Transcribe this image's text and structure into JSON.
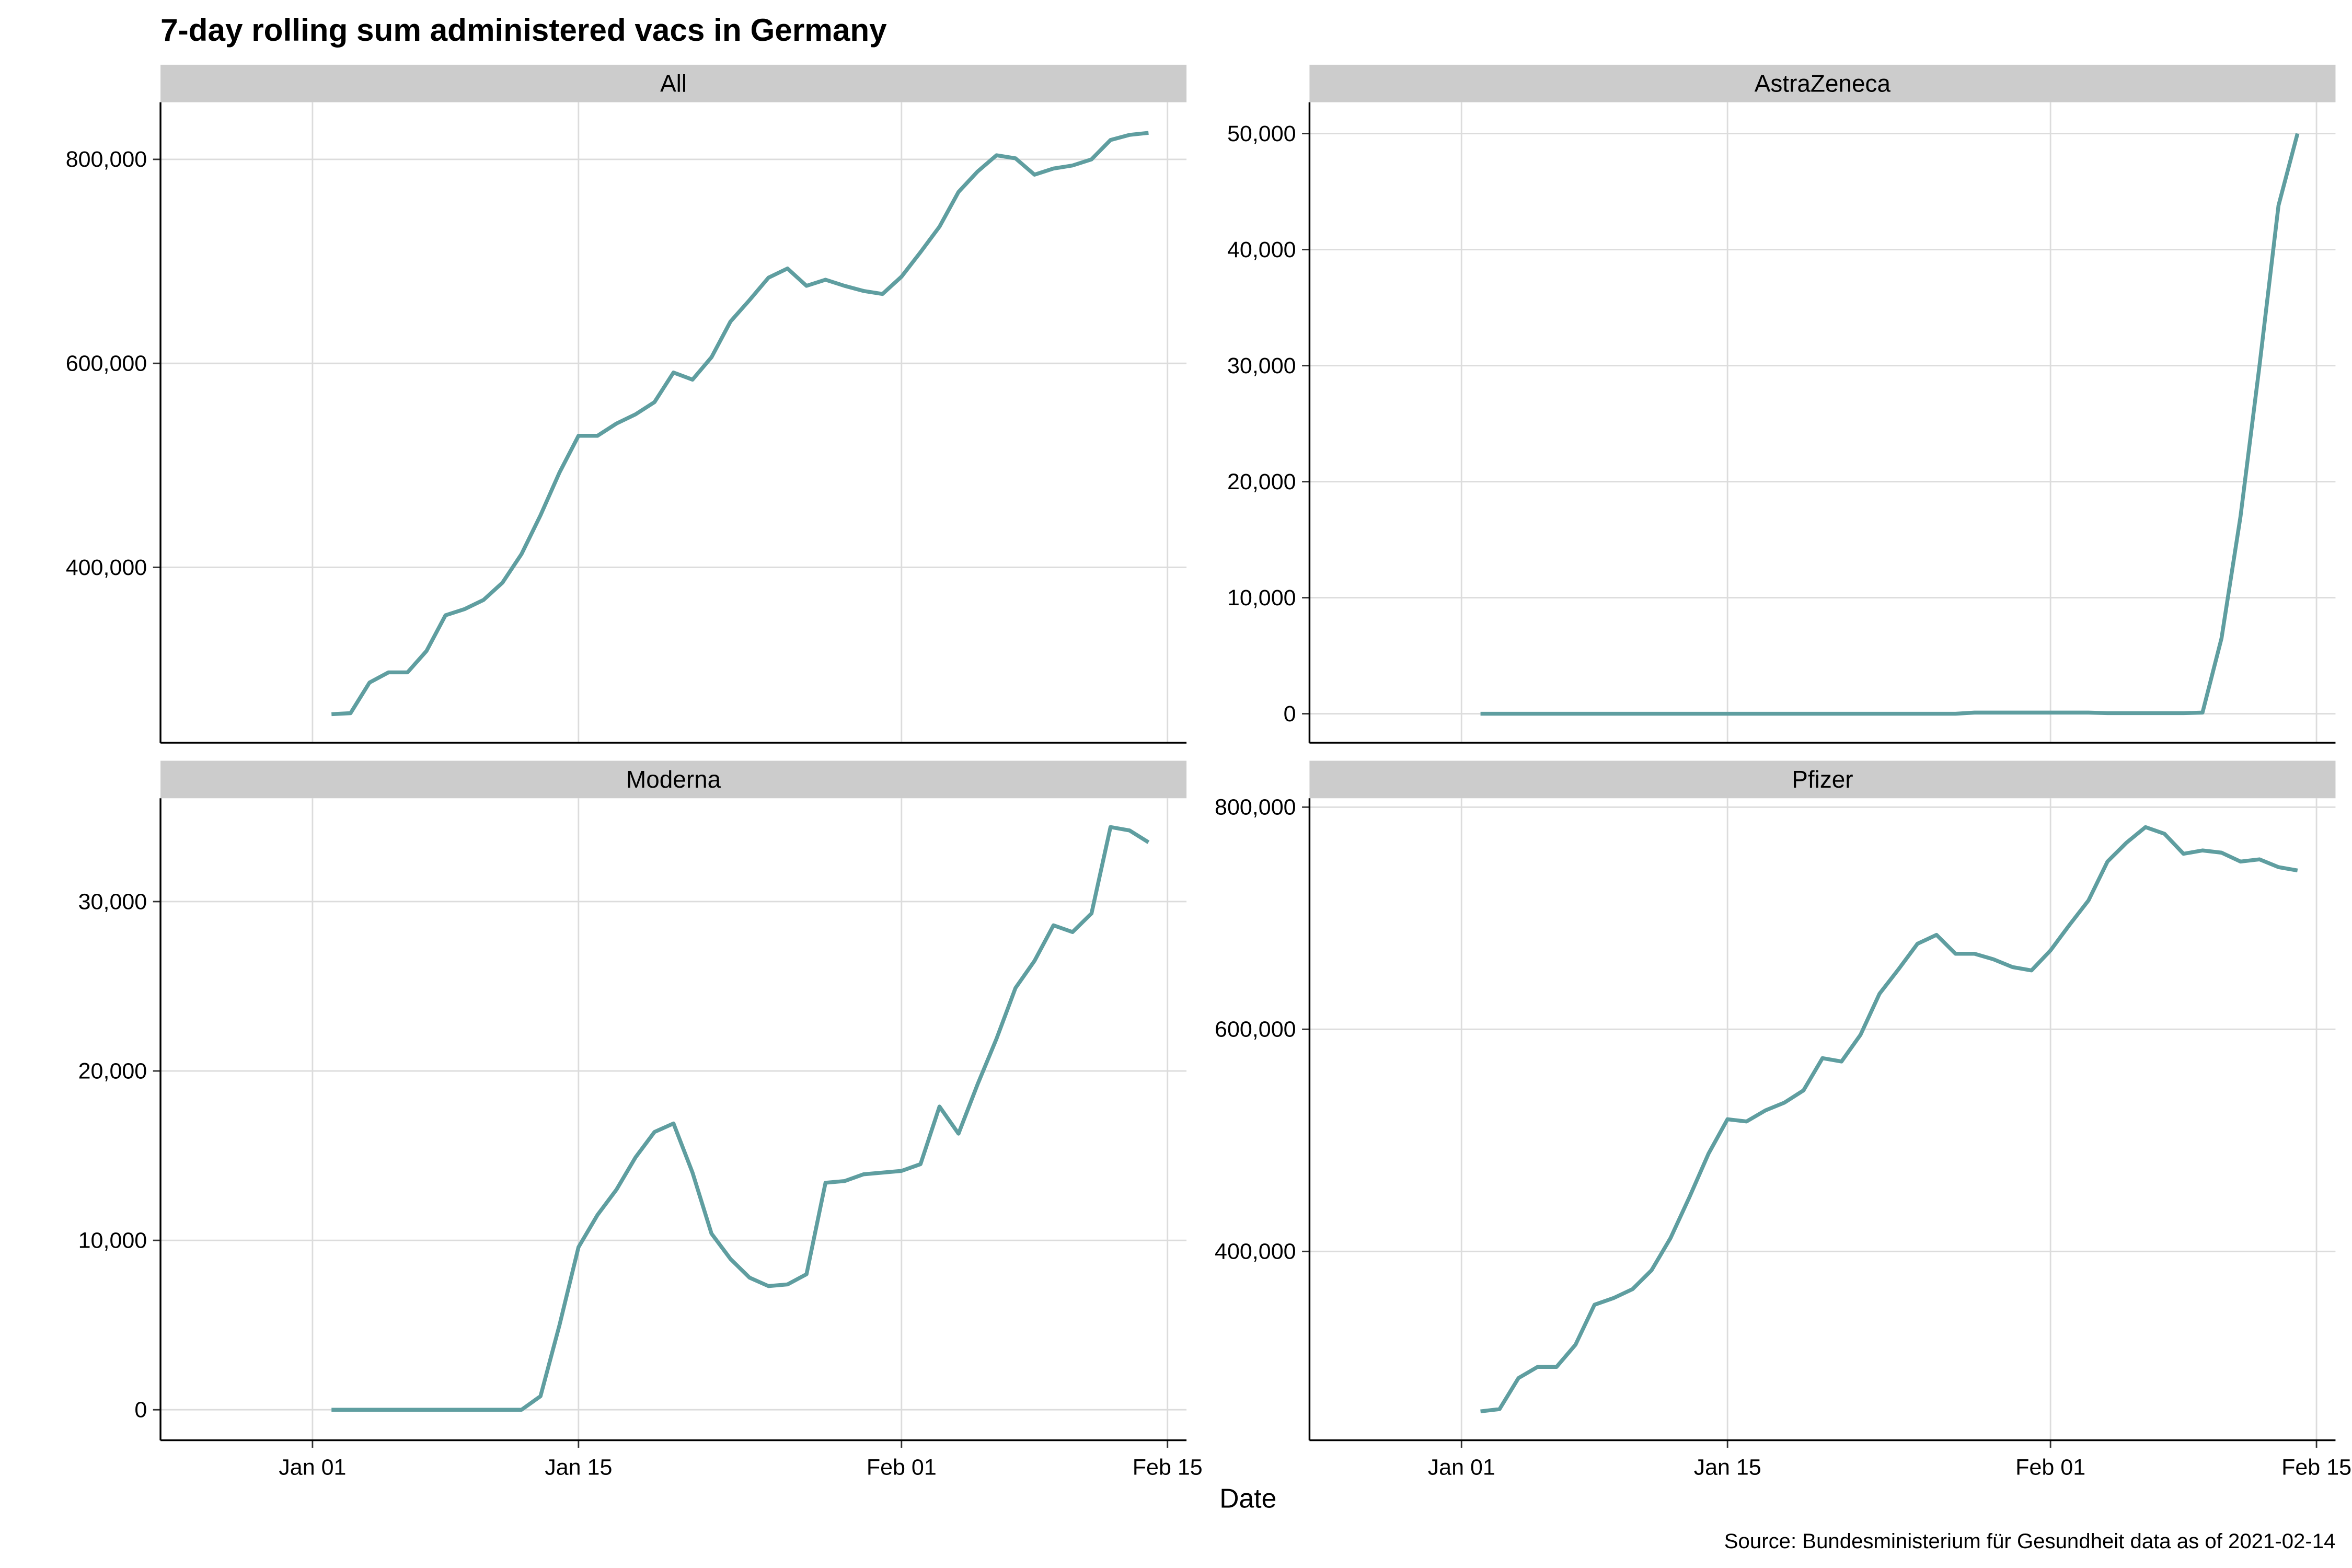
{
  "title": "7-day rolling sum administered vacs in Germany",
  "x_label": "Date",
  "caption": "Source: Bundesministerium für Gesundheit data as of 2021-02-14",
  "chart_data": [
    {
      "type": "line",
      "panel": "All",
      "color": "#5f9ea0",
      "grid": true,
      "x": [
        "Jan 02",
        "Jan 03",
        "Jan 04",
        "Jan 05",
        "Jan 06",
        "Jan 07",
        "Jan 08",
        "Jan 09",
        "Jan 10",
        "Jan 11",
        "Jan 12",
        "Jan 13",
        "Jan 14",
        "Jan 15",
        "Jan 16",
        "Jan 17",
        "Jan 18",
        "Jan 19",
        "Jan 20",
        "Jan 21",
        "Jan 22",
        "Jan 23",
        "Jan 24",
        "Jan 25",
        "Jan 26",
        "Jan 27",
        "Jan 28",
        "Jan 29",
        "Jan 30",
        "Jan 31",
        "Feb 01",
        "Feb 02",
        "Feb 03",
        "Feb 04",
        "Feb 05",
        "Feb 06",
        "Feb 07",
        "Feb 08",
        "Feb 09",
        "Feb 10",
        "Feb 11",
        "Feb 12",
        "Feb 13",
        "Feb 14"
      ],
      "values": [
        256000,
        257000,
        287000,
        297000,
        297000,
        318000,
        353000,
        359000,
        368000,
        385000,
        413000,
        451000,
        493000,
        529000,
        529000,
        541000,
        550000,
        562000,
        591000,
        584000,
        606000,
        641000,
        662000,
        684000,
        693000,
        676000,
        682000,
        676000,
        671000,
        668000,
        685000,
        709000,
        734000,
        768000,
        788000,
        804000,
        801000,
        785000,
        791000,
        794000,
        800000,
        819000,
        824000,
        826000
      ],
      "xlim": [
        "Dec 24",
        "Feb 16"
      ],
      "xticks": [
        "Jan 01",
        "Jan 15",
        "Feb 01",
        "Feb 15"
      ],
      "ylim": [
        228000,
        856000
      ],
      "yticks": [
        {
          "value": 400000,
          "label": "400,000"
        },
        {
          "value": 600000,
          "label": "600,000"
        },
        {
          "value": 800000,
          "label": "800,000"
        }
      ]
    },
    {
      "type": "line",
      "panel": "AstraZeneca",
      "color": "#5f9ea0",
      "grid": true,
      "x": [
        "Jan 02",
        "Jan 03",
        "Jan 04",
        "Jan 05",
        "Jan 06",
        "Jan 07",
        "Jan 08",
        "Jan 09",
        "Jan 10",
        "Jan 11",
        "Jan 12",
        "Jan 13",
        "Jan 14",
        "Jan 15",
        "Jan 16",
        "Jan 17",
        "Jan 18",
        "Jan 19",
        "Jan 20",
        "Jan 21",
        "Jan 22",
        "Jan 23",
        "Jan 24",
        "Jan 25",
        "Jan 26",
        "Jan 27",
        "Jan 28",
        "Jan 29",
        "Jan 30",
        "Jan 31",
        "Feb 01",
        "Feb 02",
        "Feb 03",
        "Feb 04",
        "Feb 05",
        "Feb 06",
        "Feb 07",
        "Feb 08",
        "Feb 09",
        "Feb 10",
        "Feb 11",
        "Feb 12",
        "Feb 13",
        "Feb 14"
      ],
      "values": [
        0,
        0,
        0,
        0,
        0,
        0,
        0,
        0,
        0,
        0,
        0,
        0,
        0,
        0,
        0,
        0,
        0,
        0,
        0,
        0,
        0,
        0,
        0,
        0,
        0,
        0,
        100,
        100,
        100,
        100,
        100,
        100,
        100,
        50,
        50,
        50,
        50,
        50,
        100,
        6500,
        17000,
        30000,
        43800,
        50000
      ],
      "xlim": [
        "Dec 24",
        "Feb 16"
      ],
      "xticks": [
        "Jan 01",
        "Jan 15",
        "Feb 01",
        "Feb 15"
      ],
      "ylim": [
        -2500,
        52700
      ],
      "yticks": [
        0,
        {
          "value": 10000,
          "label": "10,000"
        },
        {
          "value": 20000,
          "label": "20,000"
        },
        {
          "value": 30000,
          "label": "30,000"
        },
        {
          "value": 40000,
          "label": "40,000"
        },
        {
          "value": 50000,
          "label": "50,000"
        }
      ]
    },
    {
      "type": "line",
      "panel": "Moderna",
      "color": "#5f9ea0",
      "grid": true,
      "x": [
        "Jan 02",
        "Jan 03",
        "Jan 04",
        "Jan 05",
        "Jan 06",
        "Jan 07",
        "Jan 08",
        "Jan 09",
        "Jan 10",
        "Jan 11",
        "Jan 12",
        "Jan 13",
        "Jan 14",
        "Jan 15",
        "Jan 16",
        "Jan 17",
        "Jan 18",
        "Jan 19",
        "Jan 20",
        "Jan 21",
        "Jan 22",
        "Jan 23",
        "Jan 24",
        "Jan 25",
        "Jan 26",
        "Jan 27",
        "Jan 28",
        "Jan 29",
        "Jan 30",
        "Jan 31",
        "Feb 01",
        "Feb 02",
        "Feb 03",
        "Feb 04",
        "Feb 05",
        "Feb 06",
        "Feb 07",
        "Feb 08",
        "Feb 09",
        "Feb 10",
        "Feb 11",
        "Feb 12",
        "Feb 13",
        "Feb 14"
      ],
      "values": [
        0,
        0,
        0,
        0,
        0,
        0,
        0,
        0,
        0,
        0,
        0,
        800,
        5000,
        9600,
        11500,
        13000,
        14900,
        16400,
        16900,
        14000,
        10400,
        8900,
        7800,
        7300,
        7400,
        8000,
        13400,
        13500,
        13900,
        14000,
        14100,
        14500,
        17900,
        16300,
        19200,
        21900,
        24900,
        26500,
        28600,
        28200,
        29300,
        34400,
        34200,
        33500
      ],
      "xlim": [
        "Dec 24",
        "Feb 16"
      ],
      "xticks": [
        "Jan 01",
        "Jan 15",
        "Feb 01",
        "Feb 15"
      ],
      "ylim": [
        -1800,
        36100
      ],
      "yticks": [
        0,
        {
          "value": 10000,
          "label": "10,000"
        },
        {
          "value": 20000,
          "label": "20,000"
        },
        {
          "value": 30000,
          "label": "30,000"
        }
      ]
    },
    {
      "type": "line",
      "panel": "Pfizer",
      "color": "#5f9ea0",
      "grid": true,
      "x": [
        "Jan 02",
        "Jan 03",
        "Jan 04",
        "Jan 05",
        "Jan 06",
        "Jan 07",
        "Jan 08",
        "Jan 09",
        "Jan 10",
        "Jan 11",
        "Jan 12",
        "Jan 13",
        "Jan 14",
        "Jan 15",
        "Jan 16",
        "Jan 17",
        "Jan 18",
        "Jan 19",
        "Jan 20",
        "Jan 21",
        "Jan 22",
        "Jan 23",
        "Jan 24",
        "Jan 25",
        "Jan 26",
        "Jan 27",
        "Jan 28",
        "Jan 29",
        "Jan 30",
        "Jan 31",
        "Feb 01",
        "Feb 02",
        "Feb 03",
        "Feb 04",
        "Feb 05",
        "Feb 06",
        "Feb 07",
        "Feb 08",
        "Feb 09",
        "Feb 10",
        "Feb 11",
        "Feb 12",
        "Feb 13",
        "Feb 14"
      ],
      "values": [
        256000,
        258000,
        286000,
        296000,
        296000,
        316000,
        352000,
        358000,
        366000,
        383000,
        412000,
        449000,
        488000,
        519000,
        517000,
        527000,
        534000,
        545000,
        574000,
        571000,
        595000,
        632000,
        654000,
        677000,
        685000,
        668000,
        668000,
        663000,
        656000,
        653000,
        671000,
        694000,
        716000,
        751000,
        768000,
        782000,
        776000,
        758000,
        761000,
        759000,
        751000,
        753000,
        746000,
        743000
      ],
      "xlim": [
        "Dec 24",
        "Feb 16"
      ],
      "xticks": [
        "Jan 01",
        "Jan 15",
        "Feb 01",
        "Feb 15"
      ],
      "ylim": [
        230000,
        808000
      ],
      "yticks": [
        {
          "value": 400000,
          "label": "400,000"
        },
        {
          "value": 600000,
          "label": "600,000"
        },
        {
          "value": 800000,
          "label": "800,000"
        }
      ]
    }
  ]
}
